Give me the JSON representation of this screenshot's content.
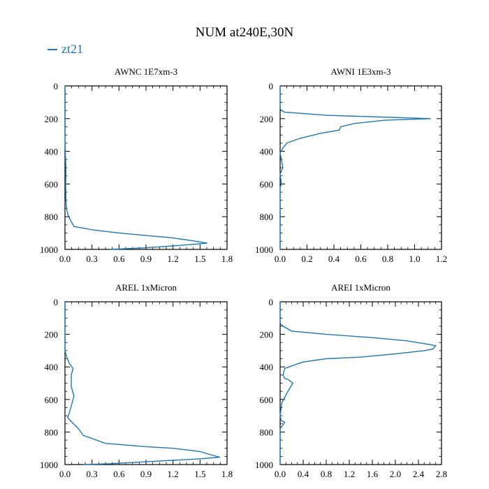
{
  "title": "NUM at240E,30N",
  "legend": [
    {
      "name": "zt21",
      "color": "#1f77b4"
    }
  ],
  "colors": {
    "line": "#1f77b4",
    "axis": "#000000"
  },
  "chart_data": [
    {
      "type": "line",
      "title": "AWNC  1E7xm-3",
      "xlabel": "",
      "ylabel": "",
      "xlim": [
        0,
        1.8
      ],
      "ylim": [
        1000,
        0
      ],
      "xticks": [
        "0.0",
        "0.3",
        "0.6",
        "0.9",
        "1.2",
        "1.5",
        "1.8"
      ],
      "yticks": [
        "0",
        "200",
        "400",
        "600",
        "800",
        "1000"
      ],
      "series": [
        {
          "name": "zt21",
          "x": [
            0.0,
            0.0,
            0.005,
            0.01,
            0.01,
            0.008,
            0.01,
            0.02,
            0.04,
            0.1,
            0.3,
            0.6,
            0.9,
            1.2,
            1.45,
            1.58,
            1.3,
            0.9,
            0.5
          ],
          "y": [
            0,
            300,
            420,
            500,
            560,
            600,
            700,
            760,
            800,
            860,
            880,
            900,
            915,
            930,
            950,
            962,
            975,
            990,
            1000
          ]
        }
      ]
    },
    {
      "type": "line",
      "title": "AWNI  1E3xm-3",
      "xlabel": "",
      "ylabel": "",
      "xlim": [
        0,
        1.2
      ],
      "ylim": [
        1000,
        0
      ],
      "xticks": [
        "0.0",
        "0.2",
        "0.4",
        "0.6",
        "0.8",
        "1.0",
        "1.2"
      ],
      "yticks": [
        "0",
        "200",
        "400",
        "600",
        "800",
        "1000"
      ],
      "series": [
        {
          "name": "zt21",
          "x": [
            0.0,
            0.0,
            0.01,
            0.03,
            0.35,
            0.75,
            1.12,
            0.78,
            0.55,
            0.45,
            0.44,
            0.3,
            0.15,
            0.08,
            0.05,
            0.02,
            0.0,
            0.02,
            0.0,
            0.01,
            0.0,
            0.0
          ],
          "y": [
            0,
            140,
            150,
            160,
            180,
            190,
            200,
            210,
            230,
            250,
            270,
            290,
            320,
            340,
            350,
            380,
            410,
            500,
            540,
            600,
            620,
            1000
          ]
        }
      ]
    },
    {
      "type": "line",
      "title": "AREL  1xMicron",
      "xlabel": "",
      "ylabel": "",
      "xlim": [
        0,
        1.8
      ],
      "ylim": [
        1000,
        0
      ],
      "xticks": [
        "0.0",
        "0.3",
        "0.6",
        "0.9",
        "1.2",
        "1.5",
        "1.8"
      ],
      "yticks": [
        "0",
        "200",
        "400",
        "600",
        "800",
        "1000"
      ],
      "series": [
        {
          "name": "zt21",
          "x": [
            0.0,
            0.0,
            0.02,
            0.05,
            0.09,
            0.07,
            0.07,
            0.09,
            0.1,
            0.08,
            0.05,
            0.03,
            0.06,
            0.15,
            0.2,
            0.35,
            0.45,
            0.9,
            1.2,
            1.5,
            1.62,
            1.72,
            1.5,
            1.0,
            0.5,
            0.2
          ],
          "y": [
            0,
            300,
            340,
            380,
            410,
            450,
            520,
            560,
            580,
            620,
            680,
            710,
            730,
            780,
            820,
            850,
            870,
            890,
            900,
            920,
            940,
            955,
            965,
            980,
            995,
            1000
          ]
        }
      ]
    },
    {
      "type": "line",
      "title": "AREI  1xMicron",
      "xlabel": "",
      "ylabel": "",
      "xlim": [
        0,
        2.8
      ],
      "ylim": [
        1000,
        0
      ],
      "xticks": [
        "0.0",
        "0.4",
        "0.8",
        "1.2",
        "1.6",
        "2.0",
        "2.4",
        "2.8"
      ],
      "yticks": [
        "0",
        "200",
        "400",
        "600",
        "800",
        "1000"
      ],
      "series": [
        {
          "name": "zt21",
          "x": [
            0.0,
            0.0,
            0.02,
            0.05,
            0.2,
            0.8,
            1.6,
            2.2,
            2.55,
            2.7,
            2.65,
            2.5,
            2.0,
            1.4,
            0.8,
            0.4,
            0.15,
            0.08,
            0.05,
            0.08,
            0.15,
            0.22,
            0.12,
            0.03,
            0.0,
            0.02,
            0.08,
            0.0,
            0.0
          ],
          "y": [
            0,
            130,
            140,
            150,
            180,
            200,
            220,
            240,
            260,
            270,
            290,
            300,
            320,
            340,
            350,
            370,
            400,
            410,
            450,
            470,
            480,
            500,
            560,
            620,
            700,
            730,
            740,
            780,
            1000
          ]
        }
      ]
    }
  ]
}
